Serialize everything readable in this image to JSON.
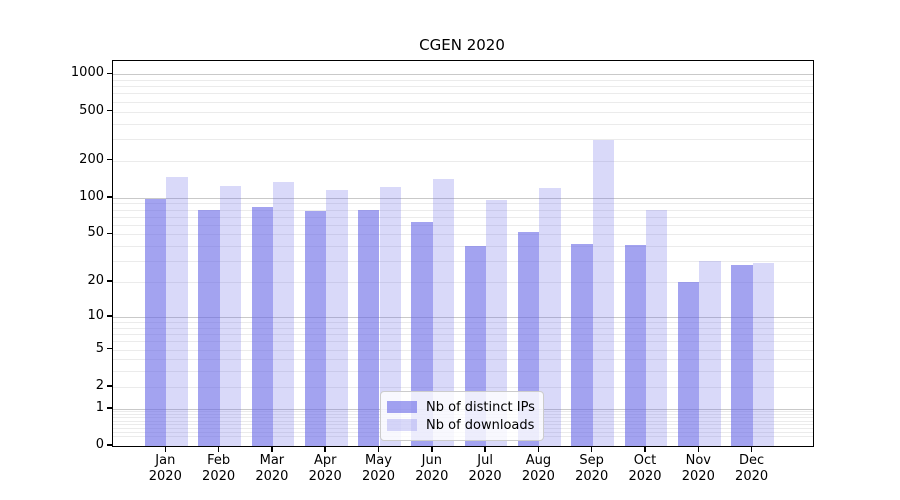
{
  "chart_data": {
    "type": "bar",
    "title": "CGEN 2020",
    "x_categories": [
      "Jan",
      "Feb",
      "Mar",
      "Apr",
      "May",
      "Jun",
      "Jul",
      "Aug",
      "Sep",
      "Oct",
      "Nov",
      "Dec"
    ],
    "x_year": "2020",
    "series": [
      {
        "name": "Nb of distinct IPs",
        "base_color": "#6666e6",
        "alpha": 0.6,
        "values": [
          97,
          79,
          84,
          78,
          80,
          63,
          40,
          52,
          42,
          41,
          20,
          28
        ]
      },
      {
        "name": "Nb of downloads",
        "base_color": "#6666e6",
        "alpha": 0.25,
        "values": [
          147,
          125,
          135,
          116,
          122,
          141,
          95,
          119,
          295,
          80,
          30,
          29
        ]
      }
    ],
    "y_scale": "symlog(log1p)",
    "y_ticks": [
      0,
      1,
      2,
      5,
      10,
      20,
      50,
      100,
      200,
      500,
      1000
    ],
    "y_minor_gridlines": [
      0.2,
      0.3,
      0.4,
      0.5,
      0.6,
      0.7,
      0.8,
      0.9,
      2,
      3,
      4,
      5,
      6,
      7,
      8,
      9,
      20,
      30,
      40,
      50,
      60,
      70,
      80,
      90,
      200,
      300,
      400,
      500,
      600,
      700,
      800,
      900
    ],
    "y_major_gridlines": [
      1,
      10,
      100,
      1000
    ],
    "ylim": [
      0,
      1100
    ],
    "grid": true,
    "legend_position": "bottom-center",
    "colors": {
      "major_grid": "#c9c9c9",
      "minor_grid": "#ebebeb",
      "spine": "#000000",
      "background": "#ffffff"
    }
  }
}
